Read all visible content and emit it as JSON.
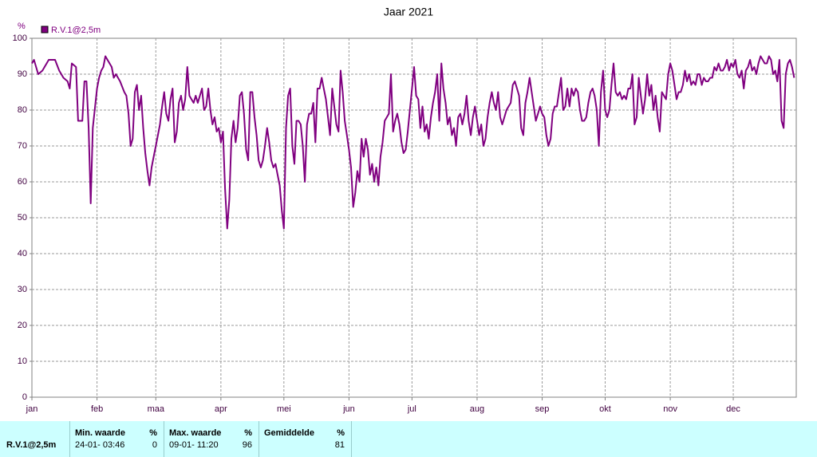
{
  "chart_data": {
    "type": "line",
    "title": "Jaar 2021",
    "y_label": "%",
    "legend": "top-left",
    "grid": true,
    "xlim": [
      0,
      364
    ],
    "ylim": [
      0,
      100
    ],
    "xticks": [
      {
        "value": 0,
        "label": "jan"
      },
      {
        "value": 31,
        "label": "feb"
      },
      {
        "value": 59,
        "label": "maa"
      },
      {
        "value": 90,
        "label": "apr"
      },
      {
        "value": 120,
        "label": "mei"
      },
      {
        "value": 151,
        "label": "jun"
      },
      {
        "value": 181,
        "label": "jul"
      },
      {
        "value": 212,
        "label": "aug"
      },
      {
        "value": 243,
        "label": "sep"
      },
      {
        "value": 273,
        "label": "okt"
      },
      {
        "value": 304,
        "label": "nov"
      },
      {
        "value": 334,
        "label": "dec"
      }
    ],
    "yticks": [
      0,
      10,
      20,
      30,
      40,
      50,
      60,
      70,
      80,
      90,
      100
    ],
    "x": [
      0,
      1,
      3,
      5,
      8,
      11,
      13,
      15,
      17,
      18,
      19,
      21,
      22,
      24,
      25,
      26,
      27,
      28,
      29,
      31,
      32,
      33,
      34,
      35,
      36,
      38,
      39,
      40,
      42,
      44,
      45,
      46,
      47,
      48,
      49,
      50,
      51,
      52,
      53,
      54,
      55,
      56,
      57,
      58,
      59,
      61,
      62,
      63,
      64,
      65,
      66,
      67,
      68,
      69,
      70,
      71,
      72,
      73,
      74,
      75,
      76,
      77,
      78,
      79,
      81,
      82,
      83,
      84,
      85,
      86,
      87,
      88,
      89,
      90,
      91,
      92,
      93,
      94,
      95,
      96,
      97,
      98,
      99,
      100,
      101,
      102,
      103,
      104,
      105,
      106,
      107,
      108,
      109,
      110,
      111,
      112,
      113,
      114,
      115,
      116,
      117,
      118,
      119,
      120,
      121,
      122,
      123,
      124,
      125,
      126,
      127,
      128,
      129,
      130,
      131,
      132,
      133,
      134,
      135,
      136,
      137,
      138,
      139,
      140,
      141,
      142,
      143,
      144,
      145,
      146,
      147,
      148,
      149,
      150,
      151,
      152,
      153,
      154,
      155,
      156,
      157,
      158,
      159,
      160,
      161,
      162,
      163,
      164,
      165,
      166,
      167,
      168,
      169,
      170,
      171,
      172,
      173,
      174,
      175,
      176,
      177,
      178,
      179,
      180,
      181,
      182,
      183,
      184,
      185,
      186,
      187,
      188,
      189,
      190,
      191,
      192,
      193,
      194,
      195,
      196,
      197,
      198,
      199,
      200,
      201,
      202,
      203,
      204,
      205,
      206,
      207,
      208,
      209,
      210,
      211,
      212,
      213,
      214,
      215,
      216,
      217,
      218,
      219,
      220,
      221,
      222,
      223,
      224,
      225,
      226,
      227,
      228,
      229,
      230,
      231,
      232,
      233,
      234,
      235,
      236,
      237,
      238,
      239,
      240,
      241,
      242,
      243,
      244,
      245,
      246,
      247,
      248,
      249,
      250,
      251,
      252,
      253,
      254,
      255,
      256,
      257,
      258,
      259,
      260,
      261,
      262,
      263,
      264,
      265,
      266,
      267,
      268,
      269,
      270,
      271,
      272,
      273,
      274,
      275,
      276,
      277,
      278,
      279,
      280,
      281,
      282,
      283,
      284,
      285,
      286,
      287,
      288,
      289,
      290,
      291,
      292,
      293,
      294,
      295,
      296,
      297,
      298,
      299,
      300,
      301,
      302,
      303,
      304,
      305,
      306,
      307,
      308,
      309,
      310,
      311,
      312,
      313,
      314,
      315,
      316,
      317,
      318,
      319,
      320,
      321,
      322,
      323,
      324,
      325,
      326,
      327,
      328,
      329,
      330,
      331,
      332,
      333,
      334,
      335,
      336,
      337,
      338,
      339,
      340,
      341,
      342,
      343,
      344,
      345,
      346,
      347,
      348,
      349,
      350,
      351,
      352,
      353,
      354,
      355,
      356,
      357,
      358,
      359,
      360,
      361,
      362,
      363
    ],
    "series": [
      {
        "name": "R.V.1@2,5m",
        "color": "#800080",
        "values": [
          93,
          94,
          90,
          91,
          94,
          94,
          91,
          89,
          88,
          86,
          93,
          92,
          77,
          77,
          88,
          88,
          75,
          54,
          75,
          86,
          89,
          91,
          92,
          95,
          94,
          92,
          89,
          90,
          88,
          85,
          84,
          79,
          70,
          72,
          85,
          87,
          80,
          84,
          75,
          68,
          63,
          59,
          64,
          67,
          70,
          76,
          81,
          85,
          79,
          77,
          83,
          86,
          71,
          74,
          82,
          84,
          80,
          83,
          92,
          84,
          83,
          82,
          84,
          82,
          86,
          80,
          81,
          86,
          80,
          76,
          78,
          74,
          75,
          71,
          74,
          58,
          47,
          55,
          72,
          77,
          71,
          75,
          84,
          85,
          79,
          69,
          66,
          85,
          85,
          78,
          73,
          66,
          64,
          66,
          70,
          75,
          71,
          66,
          64,
          65,
          62,
          59,
          52,
          47,
          75,
          84,
          86,
          70,
          65,
          77,
          77,
          76,
          70,
          60,
          76,
          79,
          79,
          82,
          71,
          86,
          86,
          89,
          86,
          83,
          78,
          73,
          86,
          81,
          76,
          74,
          91,
          85,
          77,
          73,
          69,
          64,
          53,
          57,
          63,
          60,
          72,
          67,
          72,
          69,
          62,
          65,
          60,
          64,
          59,
          67,
          71,
          77,
          78,
          79,
          90,
          74,
          77,
          79,
          76,
          71,
          68,
          69,
          74,
          80,
          86,
          92,
          84,
          83,
          75,
          81,
          74,
          76,
          72,
          78,
          82,
          85,
          90,
          77,
          93,
          86,
          82,
          76,
          78,
          73,
          75,
          70,
          78,
          79,
          76,
          79,
          84,
          77,
          73,
          78,
          81,
          77,
          73,
          76,
          70,
          72,
          78,
          82,
          85,
          82,
          80,
          85,
          78,
          76,
          78,
          80,
          81,
          82,
          87,
          88,
          86,
          84,
          75,
          73,
          82,
          85,
          89,
          85,
          81,
          77,
          79,
          81,
          79,
          78,
          73,
          70,
          72,
          79,
          81,
          81,
          85,
          89,
          80,
          81,
          86,
          81,
          86,
          84,
          86,
          85,
          80,
          77,
          77,
          78,
          82,
          85,
          86,
          84,
          80,
          70,
          85,
          91,
          80,
          78,
          80,
          87,
          93,
          85,
          84,
          85,
          83,
          84,
          83,
          86,
          86,
          90,
          76,
          78,
          89,
          84,
          79,
          83,
          90,
          84,
          87,
          80,
          84,
          78,
          74,
          85,
          84,
          83,
          90,
          93,
          91,
          87,
          83,
          85,
          85,
          87,
          91,
          88,
          90,
          87,
          88,
          87,
          90,
          90,
          87,
          89,
          88,
          88,
          89,
          89,
          92,
          91,
          93,
          91,
          91,
          92,
          94,
          91,
          93,
          92,
          94,
          90,
          89,
          91,
          86,
          91,
          92,
          94,
          91,
          92,
          90,
          93,
          95,
          94,
          93,
          93,
          95,
          94,
          90,
          91,
          88,
          94,
          77,
          75,
          90,
          93,
          94,
          92,
          89
        ]
      }
    ]
  },
  "table": {
    "row_label": "R.V.1@2,5m",
    "columns": [
      {
        "header": "Min. waarde",
        "unit": "%",
        "timestamp": "24-01- 03:46",
        "value": 0
      },
      {
        "header": "Max. waarde",
        "unit": "%",
        "timestamp": "09-01- 11:20",
        "value": 96
      },
      {
        "header": "Gemiddelde",
        "unit": "%",
        "timestamp": "",
        "value": 81
      }
    ]
  }
}
